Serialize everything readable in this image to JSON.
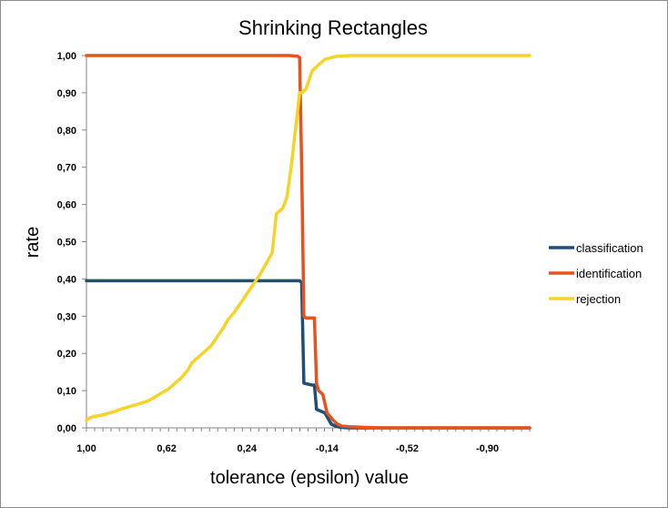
{
  "chart_data": {
    "type": "line",
    "title": "Shrinking Rectangles",
    "xlabel": "tolerance (epsilon) value",
    "ylabel": "rate",
    "x_tick_labels": [
      "1,00",
      "0,62",
      "0,24",
      "-0,14",
      "-0,52",
      "-0,90"
    ],
    "y_tick_labels": [
      "0,00",
      "0,10",
      "0,20",
      "0,30",
      "0,40",
      "0,50",
      "0,60",
      "0,70",
      "0,80",
      "0,90",
      "1,00"
    ],
    "xlim": [
      1.0,
      -1.1
    ],
    "ylim": [
      0,
      1
    ],
    "grid": false,
    "legend_position": "right",
    "series": [
      {
        "name": "classification",
        "color": "#1f4e79",
        "x": [
          1.0,
          0.5,
          0.0,
          -0.01,
          -0.02,
          -0.03,
          -0.07,
          -0.08,
          -0.09,
          -0.13,
          -0.14,
          -0.16,
          -0.18,
          -0.2,
          -0.24,
          -0.3,
          -1.1
        ],
        "y": [
          0.395,
          0.395,
          0.395,
          0.395,
          0.39,
          0.12,
          0.115,
          0.115,
          0.05,
          0.04,
          0.03,
          0.01,
          0.005,
          0.002,
          0.0,
          0.0,
          0.0
        ]
      },
      {
        "name": "identification",
        "color": "#e8521c",
        "x": [
          1.0,
          0.5,
          0.1,
          0.04,
          0.0,
          -0.01,
          -0.02,
          -0.03,
          -0.04,
          -0.08,
          -0.09,
          -0.1,
          -0.12,
          -0.14,
          -0.17,
          -0.19,
          -0.21,
          -0.25,
          -0.3,
          -0.4,
          -1.1
        ],
        "y": [
          1.0,
          1.0,
          1.0,
          1.0,
          0.998,
          0.995,
          0.7,
          0.3,
          0.295,
          0.295,
          0.12,
          0.1,
          0.09,
          0.04,
          0.02,
          0.01,
          0.005,
          0.003,
          0.002,
          0.0,
          0.0
        ]
      },
      {
        "name": "rejection",
        "color": "#f5d327",
        "x": [
          1.0,
          0.99,
          0.97,
          0.95,
          0.92,
          0.89,
          0.86,
          0.84,
          0.81,
          0.78,
          0.75,
          0.72,
          0.7,
          0.67,
          0.64,
          0.61,
          0.58,
          0.55,
          0.52,
          0.5,
          0.47,
          0.44,
          0.41,
          0.38,
          0.35,
          0.33,
          0.3,
          0.27,
          0.24,
          0.21,
          0.18,
          0.15,
          0.12,
          0.1,
          0.07,
          0.05,
          0.03,
          0.01,
          -0.01,
          -0.02,
          -0.03,
          -0.04,
          -0.07,
          -0.08,
          -0.09,
          -0.11,
          -0.13,
          -0.15,
          -0.17,
          -0.19,
          -0.22,
          -0.25,
          -0.3,
          -0.4,
          -1.1
        ],
        "y": [
          0.02,
          0.025,
          0.03,
          0.032,
          0.035,
          0.04,
          0.045,
          0.05,
          0.055,
          0.06,
          0.065,
          0.07,
          0.075,
          0.085,
          0.095,
          0.105,
          0.12,
          0.135,
          0.155,
          0.175,
          0.19,
          0.205,
          0.22,
          0.245,
          0.27,
          0.29,
          0.31,
          0.335,
          0.36,
          0.385,
          0.41,
          0.44,
          0.47,
          0.575,
          0.59,
          0.62,
          0.7,
          0.8,
          0.9,
          0.9,
          0.905,
          0.91,
          0.96,
          0.965,
          0.97,
          0.98,
          0.99,
          0.993,
          0.996,
          0.998,
          0.999,
          1.0,
          1.0,
          1.0,
          1.0
        ]
      }
    ]
  }
}
